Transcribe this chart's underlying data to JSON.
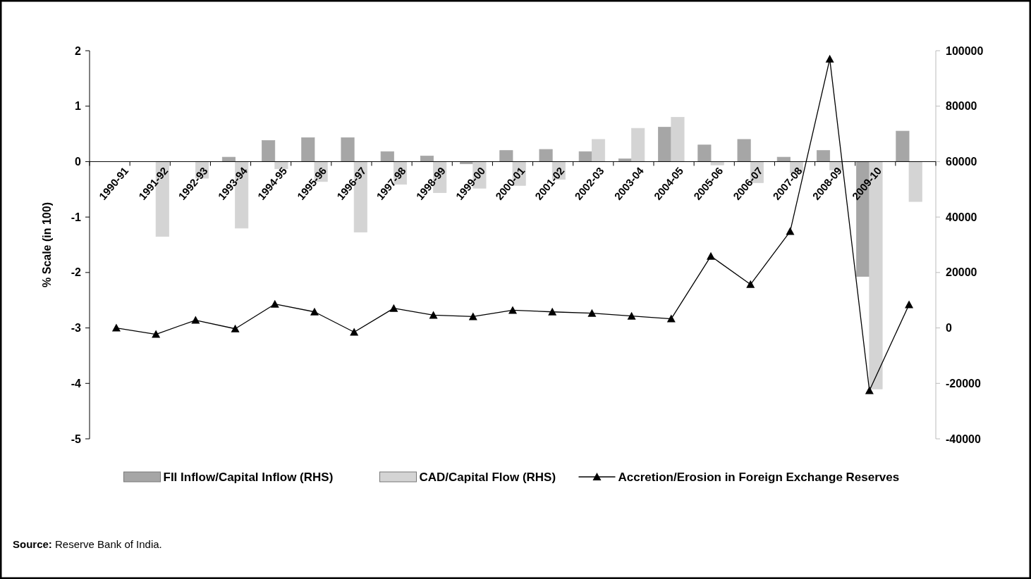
{
  "chart_data": {
    "type": "bar",
    "ylabel": "% Scale  (in 100)",
    "categories": [
      "1990-91",
      "1991-92",
      "1992-93",
      "1993-94",
      "1994-95",
      "1995-96",
      "1996-97",
      "1997-98",
      "1998-99",
      "1999-00",
      "2000-01",
      "2001-02",
      "2002-03",
      "2003-04",
      "2004-05",
      "2005-06",
      "2006-07",
      "2007-08",
      "2008-09",
      "2009-10",
      null
    ],
    "series": [
      {
        "name": "FII Inflow/Capital Inflow (RHS)",
        "color": "#a6a6a6",
        "values": [
          0,
          0,
          0,
          0.08,
          0.38,
          0.43,
          0.43,
          0.18,
          0.1,
          -0.04,
          0.2,
          0.22,
          0.18,
          0.05,
          0.62,
          0.3,
          0.4,
          0.08,
          0.2,
          -2.07,
          0.55
        ]
      },
      {
        "name": "CAD/Capital Flow (RHS)",
        "color": "#d4d4d4",
        "values": [
          0,
          -1.35,
          -0.3,
          -1.2,
          -0.13,
          -0.36,
          -1.27,
          -0.41,
          -0.56,
          -0.48,
          -0.43,
          -0.32,
          0.4,
          0.6,
          0.8,
          -0.06,
          -0.38,
          -0.2,
          -0.15,
          -4.1,
          -0.72
        ]
      },
      {
        "name": "Accretion/Erosion in Foreign Exchange Reserves",
        "type": "line",
        "axis": "y2",
        "color": "#000000",
        "marker": "triangle",
        "values": [
          0,
          -2300,
          2800,
          -300,
          8600,
          5800,
          -1500,
          7100,
          4600,
          4100,
          6400,
          5800,
          5300,
          4300,
          3300,
          25900,
          15700,
          34800,
          97000,
          -22600,
          8400
        ]
      }
    ],
    "ylim": [
      -5,
      2
    ],
    "yticks": [
      -5,
      -4,
      -3,
      -2,
      -1,
      0,
      1,
      2
    ],
    "y2lim": [
      -40000,
      100000
    ],
    "y2ticks": [
      -40000,
      -20000,
      0,
      20000,
      40000,
      60000,
      80000,
      100000
    ],
    "legend": "bottom",
    "annotations": [
      "Source: Reserve Bank of India."
    ]
  }
}
